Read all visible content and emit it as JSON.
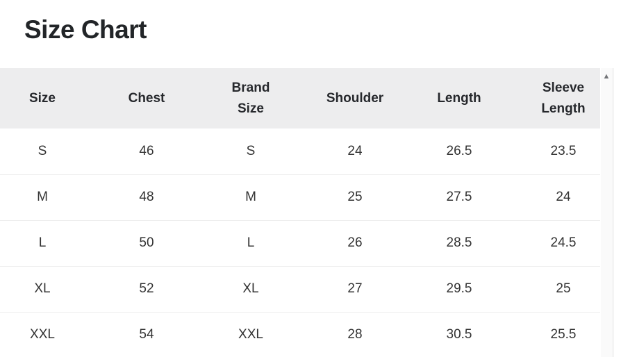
{
  "page": {
    "title": "Size Chart"
  },
  "table": {
    "columns": [
      "Size",
      "Chest",
      "Brand\nSize",
      "Shoulder",
      "Length",
      "Sleeve\nLength"
    ],
    "rows": [
      [
        "S",
        "46",
        "S",
        "24",
        "26.5",
        "23.5"
      ],
      [
        "M",
        "48",
        "M",
        "25",
        "27.5",
        "24"
      ],
      [
        "L",
        "50",
        "L",
        "26",
        "28.5",
        "24.5"
      ],
      [
        "XL",
        "52",
        "XL",
        "27",
        "29.5",
        "25"
      ],
      [
        "XXL",
        "54",
        "XXL",
        "28",
        "30.5",
        "25.5"
      ]
    ]
  },
  "icons": {
    "scroll_up": "▲"
  },
  "colors": {
    "header_background": "#ededee",
    "header_text": "#26282c",
    "cell_text": "#333333",
    "row_divider": "#ededed",
    "scrollbar_track": "#fafafa",
    "scrollbar_arrow": "#737578",
    "section_border": "#d9d9d9"
  }
}
